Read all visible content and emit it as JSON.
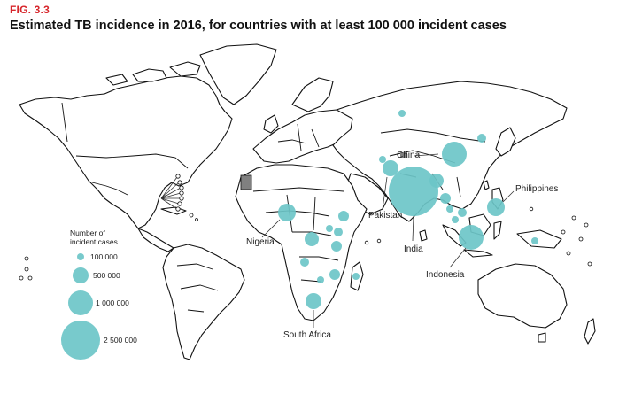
{
  "figure": {
    "label": "FIG. 3.3",
    "title": "Estimated TB incidence in 2016, for countries with at least 100 000 incident cases"
  },
  "colors": {
    "bubble": "#6cc5c8",
    "label_red": "#d7262b",
    "highlight_land": "#808080"
  },
  "country_labels": [
    "China",
    "Philippines",
    "Pakistan",
    "India",
    "Nigeria",
    "Indonesia",
    "South Africa"
  ],
  "legend": {
    "title_line1": "Number of",
    "title_line2": "incident cases",
    "items": [
      {
        "label": "100 000",
        "value": 100000
      },
      {
        "label": "500 000",
        "value": 500000
      },
      {
        "label": "1 000 000",
        "value": 1000000
      },
      {
        "label": "2 500 000",
        "value": 2500000
      }
    ]
  }
}
